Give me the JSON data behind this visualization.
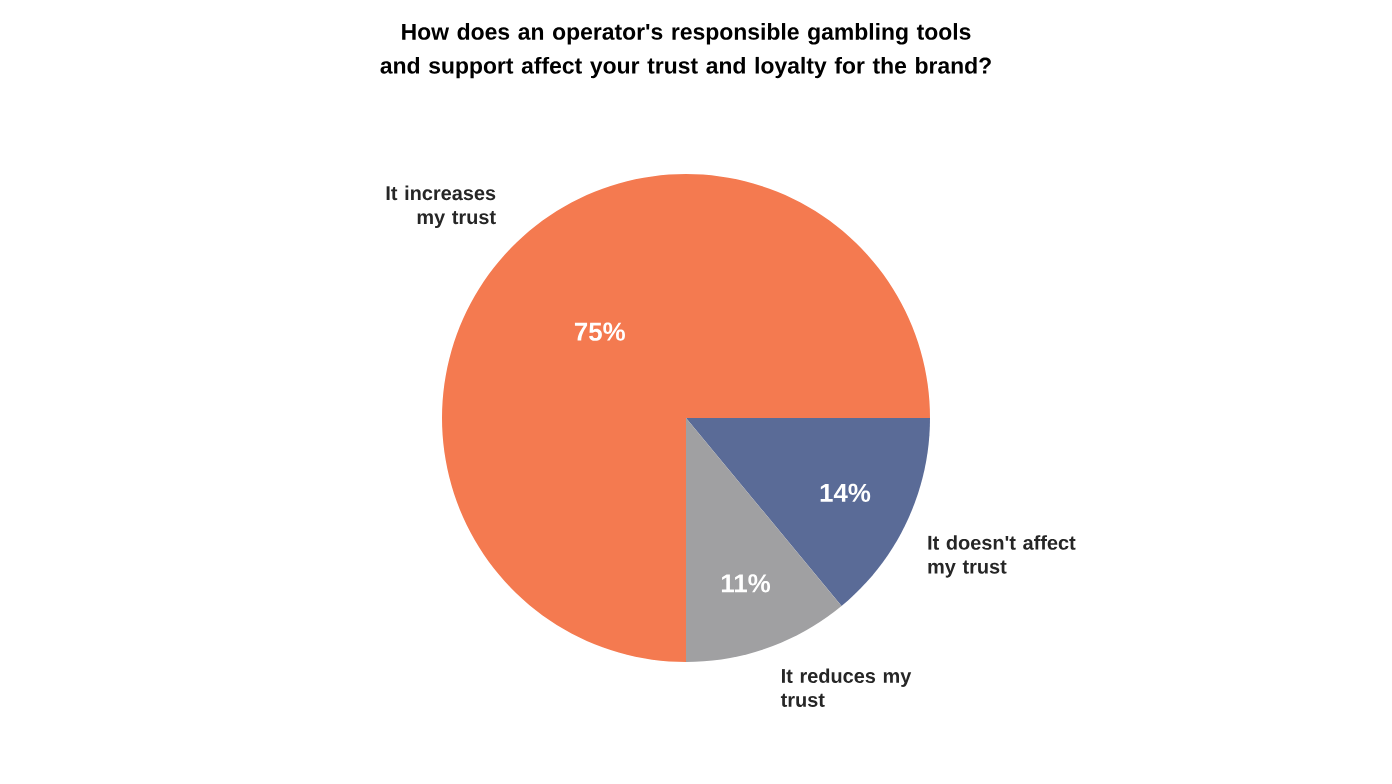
{
  "chart_data": {
    "type": "pie",
    "title": "How does an operator's responsible gambling tools and support affect your trust and loyalty for the brand?",
    "categories": [
      "It increases my trust",
      "It doesn't affect my trust",
      "It reduces my trust"
    ],
    "values": [
      75,
      14,
      11
    ],
    "value_labels": [
      "75%",
      "14%",
      "11%"
    ],
    "colors": [
      "#f47a50",
      "#5a6b97",
      "#a0a0a2"
    ]
  }
}
